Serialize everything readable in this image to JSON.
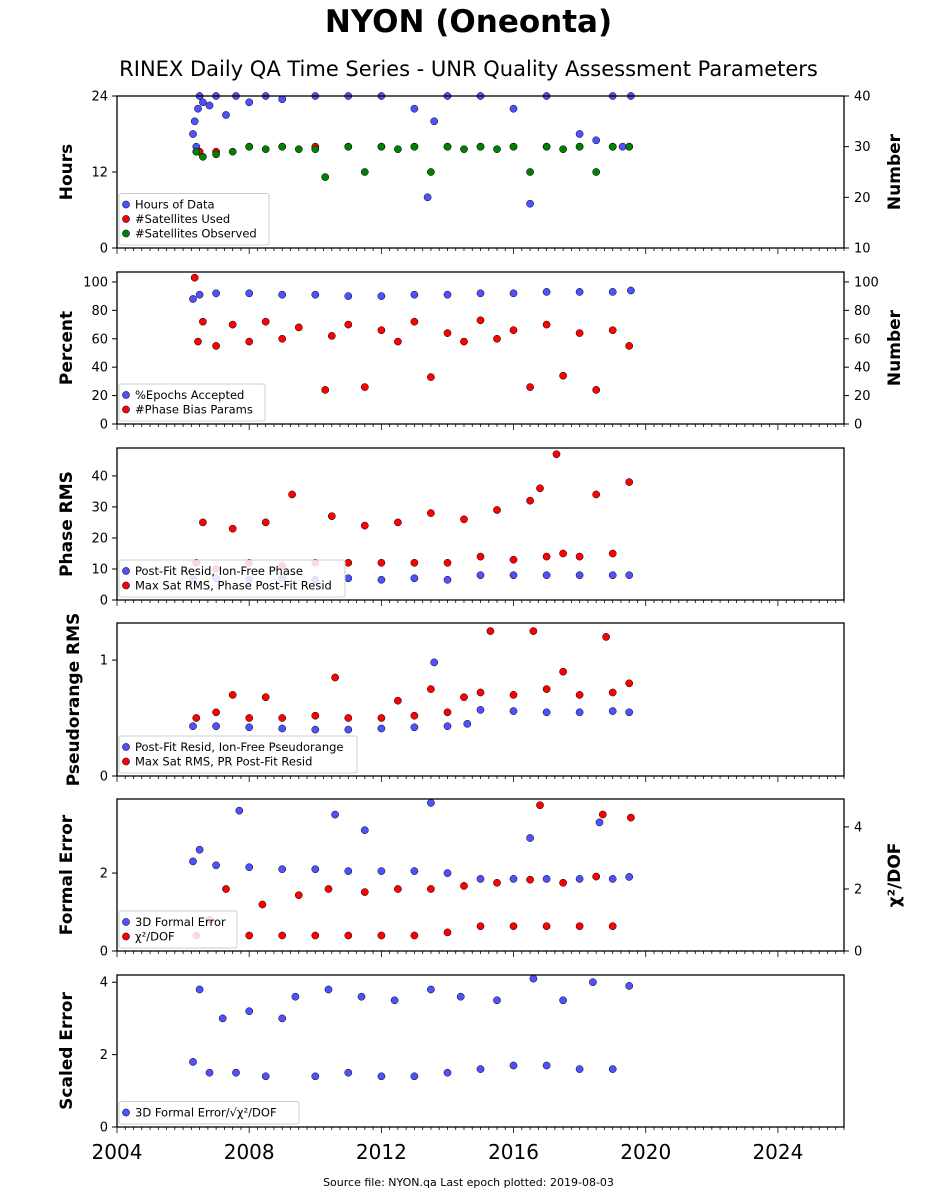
{
  "title": "NYON (Oneonta)",
  "subtitle": "RINEX Daily QA Time Series - UNR Quality Assessment Parameters",
  "footer": "Source file: NYON.qa Last epoch plotted: 2019-08-03",
  "chart_data": [
    {
      "type": "scatter",
      "ylabel": "Hours",
      "y2label": "Number",
      "yticks": [
        0,
        12,
        24
      ],
      "ylim": [
        0,
        24
      ],
      "y2ticks": [
        10,
        20,
        30,
        40
      ],
      "y2lim": [
        10,
        40
      ],
      "legend_position": "lower-left",
      "series": [
        {
          "name": "Hours of Data",
          "color": "#5050ff",
          "axis": "left",
          "x": [
            2006.3,
            2006.35,
            2006.4,
            2006.45,
            2006.5,
            2006.6,
            2006.8,
            2007.0,
            2007.3,
            2007.6,
            2008.0,
            2008.5,
            2009.0,
            2010.0,
            2011.0,
            2012.0,
            2013.0,
            2013.4,
            2013.6,
            2014.0,
            2015.0,
            2016.0,
            2016.5,
            2017.0,
            2018.0,
            2018.5,
            2019.0,
            2019.3,
            2019.55
          ],
          "y": [
            18,
            20,
            16,
            22,
            24,
            23,
            22.5,
            24,
            21,
            24,
            23,
            24,
            23.5,
            24,
            24,
            24,
            22,
            8,
            20,
            24,
            24,
            22,
            7,
            24,
            18,
            17,
            24,
            16,
            24
          ]
        },
        {
          "name": "#Satellites Used",
          "color": "#ff0000",
          "axis": "right",
          "x": [
            2006.5,
            2007.0,
            2008.0,
            2009.0,
            2010.0,
            2011.0,
            2012.0,
            2013.0,
            2014.0,
            2015.0,
            2016.0,
            2017.0,
            2018.0,
            2019.0,
            2019.5
          ],
          "y": [
            29,
            29,
            30,
            30,
            30,
            30,
            30,
            30,
            30,
            30,
            30,
            30,
            30,
            30,
            30
          ]
        },
        {
          "name": "#Satellites Observed",
          "color": "#008000",
          "axis": "right",
          "x": [
            2006.4,
            2006.6,
            2007.0,
            2007.5,
            2008.0,
            2008.5,
            2009.0,
            2009.5,
            2010.0,
            2010.3,
            2011.0,
            2011.5,
            2012.0,
            2012.5,
            2013.0,
            2013.5,
            2014.0,
            2014.5,
            2015.0,
            2015.5,
            2016.0,
            2016.5,
            2017.0,
            2017.5,
            2018.0,
            2018.5,
            2019.0,
            2019.5
          ],
          "y": [
            29,
            28,
            28.5,
            29,
            30,
            29.5,
            30,
            29.5,
            29.5,
            24,
            30,
            25,
            30,
            29.5,
            30,
            25,
            30,
            29.5,
            30,
            29.5,
            30,
            25,
            30,
            29.5,
            30,
            25,
            30,
            30
          ]
        }
      ]
    },
    {
      "type": "scatter",
      "ylabel": "Percent",
      "y2label": "Number",
      "yticks": [
        0,
        20,
        40,
        60,
        80,
        100
      ],
      "ylim": [
        0,
        107
      ],
      "y2ticks": [
        0,
        20,
        40,
        60,
        80,
        100
      ],
      "y2lim": [
        0,
        107
      ],
      "legend_position": "lower-left",
      "series": [
        {
          "name": "%Epochs Accepted",
          "color": "#5050ff",
          "axis": "left",
          "x": [
            2006.3,
            2006.5,
            2007.0,
            2008.0,
            2009.0,
            2010.0,
            2011.0,
            2012.0,
            2013.0,
            2014.0,
            2015.0,
            2016.0,
            2017.0,
            2018.0,
            2019.0,
            2019.55
          ],
          "y": [
            88,
            91,
            92,
            92,
            91,
            91,
            90,
            90,
            91,
            91,
            92,
            92,
            93,
            93,
            93,
            94
          ]
        },
        {
          "name": "#Phase Bias Params",
          "color": "#ff0000",
          "axis": "right",
          "x": [
            2006.35,
            2006.45,
            2006.6,
            2007.0,
            2007.5,
            2008.0,
            2008.5,
            2009.0,
            2009.5,
            2010.3,
            2010.5,
            2011.0,
            2011.5,
            2012.0,
            2012.5,
            2013.0,
            2013.5,
            2014.0,
            2014.5,
            2015.0,
            2015.5,
            2016.0,
            2016.5,
            2017.0,
            2017.5,
            2018.0,
            2018.5,
            2019.0,
            2019.5
          ],
          "y": [
            103,
            58,
            72,
            55,
            70,
            58,
            72,
            60,
            68,
            24,
            62,
            70,
            26,
            66,
            58,
            72,
            33,
            64,
            58,
            73,
            60,
            66,
            26,
            70,
            34,
            64,
            24,
            66,
            55
          ]
        }
      ]
    },
    {
      "type": "scatter",
      "ylabel": "Phase RMS",
      "yticks": [
        0,
        10,
        20,
        30,
        40
      ],
      "ylim": [
        0,
        49
      ],
      "legend_position": "lower-left",
      "series": [
        {
          "name": "Post-Fit Resid, Ion-Free Phase",
          "color": "#5050ff",
          "x": [
            2006.3,
            2007.0,
            2008.0,
            2009.0,
            2010.0,
            2011.0,
            2012.0,
            2013.0,
            2014.0,
            2015.0,
            2016.0,
            2017.0,
            2018.0,
            2019.0,
            2019.5
          ],
          "y": [
            7,
            7,
            6.5,
            7,
            6.5,
            7,
            6.5,
            7,
            6.5,
            8,
            8,
            8,
            8,
            8,
            8
          ]
        },
        {
          "name": "Max Sat RMS, Phase Post-Fit Resid",
          "color": "#ff0000",
          "x": [
            2006.4,
            2006.6,
            2007.0,
            2007.5,
            2008.0,
            2008.5,
            2009.0,
            2009.3,
            2010.0,
            2010.5,
            2011.0,
            2011.5,
            2012.0,
            2012.5,
            2013.0,
            2013.5,
            2014.0,
            2014.5,
            2015.0,
            2015.5,
            2016.0,
            2016.5,
            2016.8,
            2017.0,
            2017.3,
            2017.5,
            2018.0,
            2018.5,
            2019.0,
            2019.5
          ],
          "y": [
            12,
            25,
            10,
            23,
            12,
            25,
            11,
            34,
            12,
            27,
            12,
            24,
            12,
            25,
            12,
            28,
            12,
            26,
            14,
            29,
            13,
            32,
            36,
            14,
            47,
            15,
            14,
            34,
            15,
            38
          ]
        }
      ]
    },
    {
      "type": "scatter",
      "ylabel": "Pseudorange RMS",
      "yticks": [
        0,
        1
      ],
      "ylim": [
        0,
        1.32
      ],
      "legend_position": "lower-left",
      "series": [
        {
          "name": "Post-Fit Resid, Ion-Free Pseudorange",
          "color": "#5050ff",
          "x": [
            2006.3,
            2007.0,
            2008.0,
            2009.0,
            2010.0,
            2011.0,
            2012.0,
            2013.0,
            2013.6,
            2014.0,
            2014.6,
            2015.0,
            2016.0,
            2017.0,
            2018.0,
            2019.0,
            2019.5
          ],
          "y": [
            0.43,
            0.43,
            0.42,
            0.41,
            0.4,
            0.4,
            0.41,
            0.42,
            0.98,
            0.43,
            0.45,
            0.57,
            0.56,
            0.55,
            0.55,
            0.56,
            0.55
          ]
        },
        {
          "name": "Max Sat RMS, PR Post-Fit Resid",
          "color": "#ff0000",
          "x": [
            2006.4,
            2007.0,
            2007.5,
            2008.0,
            2008.5,
            2009.0,
            2010.0,
            2010.6,
            2011.0,
            2012.0,
            2012.5,
            2013.0,
            2013.5,
            2014.0,
            2014.5,
            2015.0,
            2015.3,
            2016.0,
            2016.6,
            2017.0,
            2017.5,
            2018.0,
            2018.8,
            2019.0,
            2019.5
          ],
          "y": [
            0.5,
            0.55,
            0.7,
            0.5,
            0.68,
            0.5,
            0.52,
            0.85,
            0.5,
            0.5,
            0.65,
            0.52,
            0.75,
            0.55,
            0.68,
            0.72,
            1.25,
            0.7,
            1.25,
            0.75,
            0.9,
            0.7,
            1.2,
            0.72,
            0.8
          ]
        }
      ]
    },
    {
      "type": "scatter",
      "ylabel": "Formal Error",
      "y2label": "χ²/DOF",
      "yticks": [
        0,
        2
      ],
      "ylim": [
        0,
        3.9
      ],
      "y2ticks": [
        0,
        2,
        4
      ],
      "y2lim": [
        0,
        4.9
      ],
      "legend_position": "lower-left",
      "series": [
        {
          "name": "3D Formal Error",
          "color": "#5050ff",
          "axis": "left",
          "x": [
            2006.3,
            2006.5,
            2007.0,
            2007.7,
            2008.0,
            2009.0,
            2010.0,
            2010.6,
            2011.0,
            2011.5,
            2012.0,
            2013.0,
            2013.5,
            2014.0,
            2015.0,
            2016.0,
            2016.5,
            2017.0,
            2018.0,
            2018.6,
            2019.0,
            2019.5
          ],
          "y": [
            2.3,
            2.6,
            2.2,
            3.6,
            2.15,
            2.1,
            2.1,
            3.5,
            2.05,
            3.1,
            2.05,
            2.05,
            3.8,
            2.0,
            1.85,
            1.85,
            2.9,
            1.85,
            1.85,
            3.3,
            1.85,
            1.9
          ]
        },
        {
          "name": "χ²/DOF",
          "color": "#ff0000",
          "axis": "right",
          "x": [
            2006.4,
            2006.8,
            2007.3,
            2008.0,
            2008.4,
            2009.0,
            2009.5,
            2010.0,
            2010.4,
            2011.0,
            2011.5,
            2012.0,
            2012.5,
            2013.0,
            2013.5,
            2014.0,
            2014.5,
            2015.0,
            2015.5,
            2016.0,
            2016.5,
            2016.8,
            2017.0,
            2017.5,
            2018.0,
            2018.5,
            2018.7,
            2019.0,
            2019.55
          ],
          "y": [
            0.5,
            1.0,
            2.0,
            0.5,
            1.5,
            0.5,
            1.8,
            0.5,
            2.0,
            0.5,
            1.9,
            0.5,
            2.0,
            0.5,
            2.0,
            0.6,
            2.1,
            0.8,
            2.2,
            0.8,
            2.3,
            4.7,
            0.8,
            2.2,
            0.8,
            2.4,
            4.4,
            0.8,
            4.3
          ]
        }
      ]
    },
    {
      "type": "scatter",
      "ylabel": "Scaled Error",
      "yticks": [
        0,
        2,
        4
      ],
      "ylim": [
        0,
        4.2
      ],
      "legend_position": "lower-left",
      "series": [
        {
          "name": "3D Formal Error/√χ²/DOF",
          "color": "#5050ff",
          "x": [
            2006.3,
            2006.5,
            2006.8,
            2007.2,
            2007.6,
            2008.0,
            2008.5,
            2009.0,
            2009.4,
            2010.0,
            2010.4,
            2011.0,
            2011.4,
            2012.0,
            2012.4,
            2013.0,
            2013.5,
            2014.0,
            2014.4,
            2015.0,
            2015.5,
            2016.0,
            2016.6,
            2017.0,
            2017.5,
            2018.0,
            2018.4,
            2019.0,
            2019.5
          ],
          "y": [
            1.8,
            3.8,
            1.5,
            3.0,
            1.5,
            3.2,
            1.4,
            3.0,
            3.6,
            1.4,
            3.8,
            1.5,
            3.6,
            1.4,
            3.5,
            1.4,
            3.8,
            1.5,
            3.6,
            1.6,
            3.5,
            1.7,
            4.1,
            1.7,
            3.5,
            1.6,
            4.0,
            1.6,
            3.9
          ]
        }
      ]
    }
  ],
  "x_axis": {
    "ticks": [
      "2004",
      "2008",
      "2012",
      "2016",
      "2020",
      "2024"
    ],
    "range": [
      2004,
      2026
    ]
  }
}
